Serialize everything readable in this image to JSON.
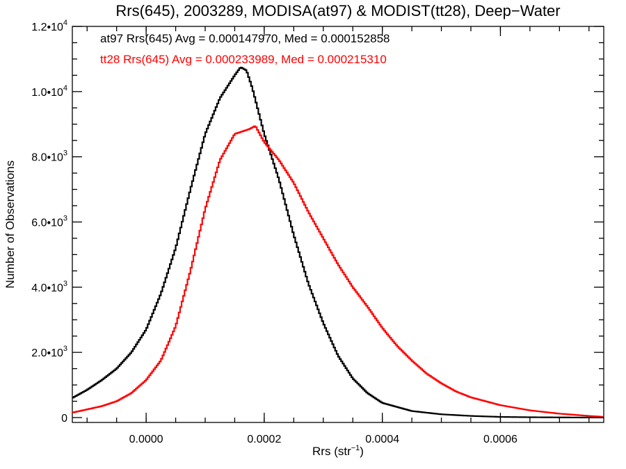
{
  "chart_data": {
    "type": "line",
    "step": true,
    "title": "Rrs(645), 2003289, MODISA(at97) & MODIST(tt28), Deep−Water",
    "xlabel": "Rrs (str",
    "xlabel_sup": "−1",
    "xlabel_close": ")",
    "ylabel": "Number of Observations",
    "xlim": [
      -0.000125,
      0.000775
    ],
    "ylim": [
      -150,
      12000
    ],
    "x_ticks": [
      {
        "value": 0.0,
        "label": "0.0000"
      },
      {
        "value": 0.0002,
        "label": "0.0002"
      },
      {
        "value": 0.0004,
        "label": "0.0004"
      },
      {
        "value": 0.0006,
        "label": "0.0006"
      }
    ],
    "y_ticks": [
      {
        "value": 0,
        "label": "0",
        "sup": ""
      },
      {
        "value": 2000,
        "label": "2.0•10",
        "sup": "3"
      },
      {
        "value": 4000,
        "label": "4.0•10",
        "sup": "3"
      },
      {
        "value": 6000,
        "label": "6.0•10",
        "sup": "3"
      },
      {
        "value": 8000,
        "label": "8.0•10",
        "sup": "3"
      },
      {
        "value": 10000,
        "label": "1.0•10",
        "sup": "4"
      },
      {
        "value": 12000,
        "label": "1.2•10",
        "sup": "4"
      }
    ],
    "grid": false,
    "series": [
      {
        "name": "at97",
        "color": "#000000",
        "annotation": "at97 Rrs(645) Avg = 0.000147970, Med = 0.000152858",
        "x": [
          -0.000125,
          -0.0001,
          -7.5e-05,
          -5e-05,
          -2.5e-05,
          0.0,
          2.5e-05,
          5e-05,
          7.5e-05,
          0.0001,
          0.000125,
          0.00015,
          0.00016,
          0.00017,
          0.00018,
          0.0002,
          0.000225,
          0.00025,
          0.000275,
          0.0003,
          0.000325,
          0.00035,
          0.000375,
          0.0004,
          0.00045,
          0.0005,
          0.00055,
          0.0006,
          0.00065,
          0.0007,
          0.000775
        ],
        "y": [
          600,
          850,
          1150,
          1500,
          2000,
          2700,
          3800,
          5200,
          7000,
          8700,
          9800,
          10500,
          10750,
          10650,
          10100,
          8700,
          7300,
          5600,
          4100,
          2900,
          1900,
          1200,
          750,
          450,
          200,
          100,
          50,
          20,
          10,
          5,
          0
        ]
      },
      {
        "name": "tt28",
        "color": "#ff0000",
        "annotation": "tt28 Rrs(645) Avg = 0.000233989, Med = 0.000215310",
        "x": [
          -0.000125,
          -0.0001,
          -7.5e-05,
          -5e-05,
          -2.5e-05,
          0.0,
          2.5e-05,
          5e-05,
          7.5e-05,
          0.0001,
          0.000125,
          0.00015,
          0.000175,
          0.000185,
          0.0002,
          0.000225,
          0.00025,
          0.000275,
          0.0003,
          0.000325,
          0.00035,
          0.000375,
          0.0004,
          0.000425,
          0.00045,
          0.000475,
          0.0005,
          0.000525,
          0.00055,
          0.0006,
          0.00065,
          0.0007,
          0.00075,
          0.000775
        ],
        "y": [
          150,
          250,
          350,
          500,
          750,
          1150,
          1750,
          2800,
          4500,
          6400,
          7900,
          8700,
          8850,
          8950,
          8450,
          7900,
          7200,
          6300,
          5500,
          4700,
          4000,
          3400,
          2750,
          2200,
          1750,
          1350,
          1050,
          800,
          620,
          380,
          220,
          120,
          50,
          20
        ]
      }
    ]
  }
}
